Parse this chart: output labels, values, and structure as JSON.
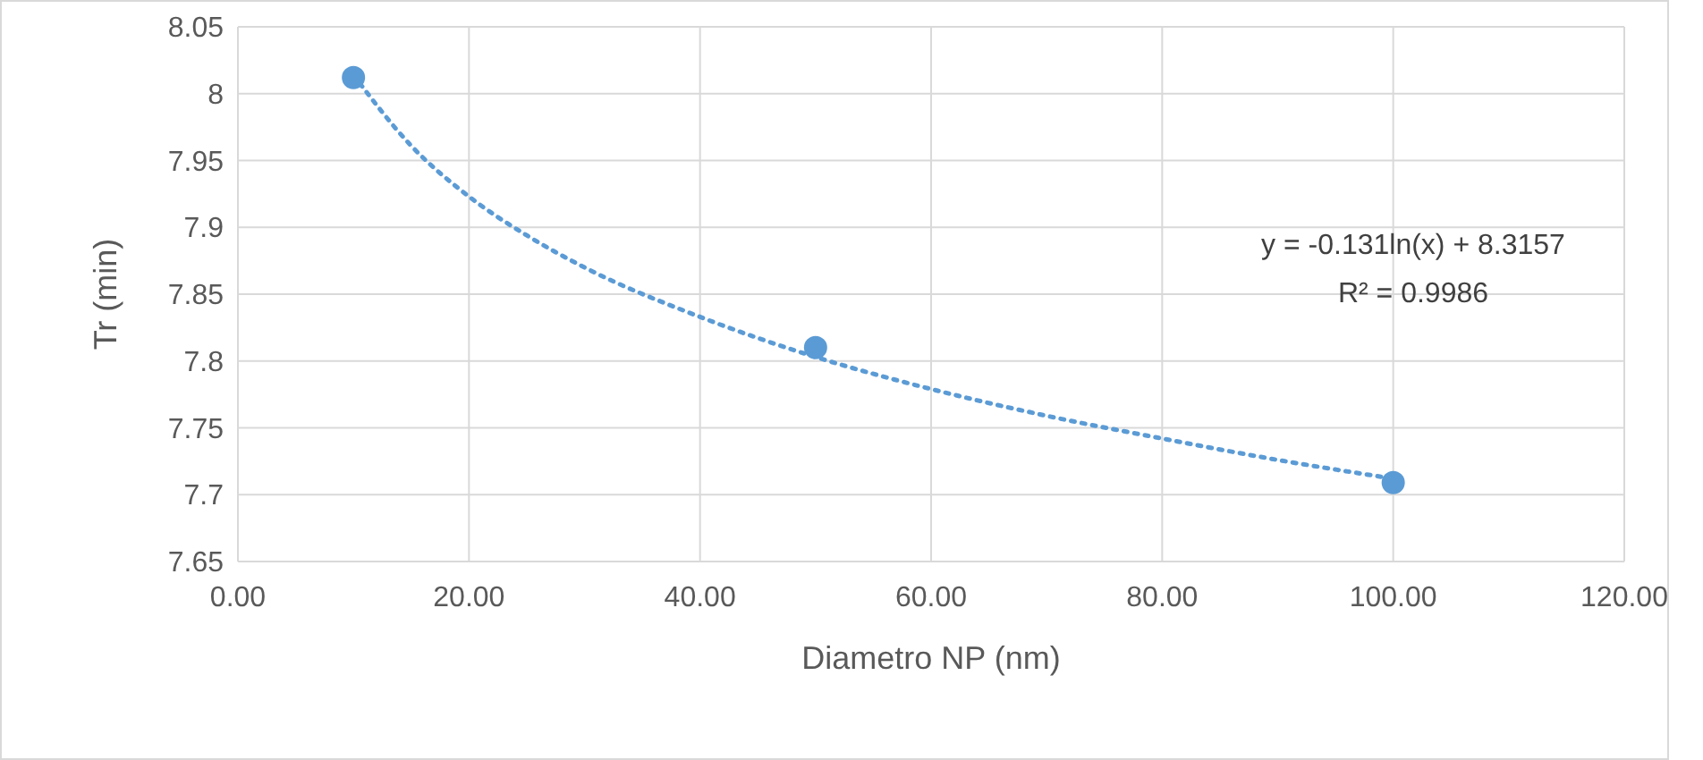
{
  "chart_data": {
    "type": "scatter",
    "xlabel": "Diametro NP (nm)",
    "ylabel": "Tr (min)",
    "xlim": [
      0,
      120
    ],
    "xticks": [
      {
        "value": 0,
        "label": "0.00"
      },
      {
        "value": 20,
        "label": "20.00"
      },
      {
        "value": 40,
        "label": "40.00"
      },
      {
        "value": 60,
        "label": "60.00"
      },
      {
        "value": 80,
        "label": "80.00"
      },
      {
        "value": 100,
        "label": "100.00"
      },
      {
        "value": 120,
        "label": "120.00"
      }
    ],
    "ylim": [
      7.65,
      8.05
    ],
    "yticks": [
      7.65,
      7.7,
      7.75,
      7.8,
      7.85,
      7.9,
      7.95,
      8,
      8.05
    ],
    "grid": true,
    "marker": "circle",
    "series": [
      {
        "color": "#5b9bd5",
        "x": [
          10,
          50,
          100
        ],
        "values": [
          8.012,
          7.81,
          7.709
        ]
      },
      {
        "type": "line",
        "color": "#5b9bd5",
        "line_style": "dotted",
        "marker": "none",
        "x": [
          10,
          15,
          20,
          25,
          30,
          40,
          50,
          60,
          70,
          80,
          90,
          100
        ],
        "values": [
          8.014,
          7.961,
          7.923,
          7.894,
          7.87,
          7.833,
          7.803,
          7.779,
          7.759,
          7.742,
          7.726,
          7.712
        ]
      }
    ],
    "annotations": [
      "y = -0.131ln(x) + 8.3157",
      "R² = 0.9986"
    ]
  }
}
